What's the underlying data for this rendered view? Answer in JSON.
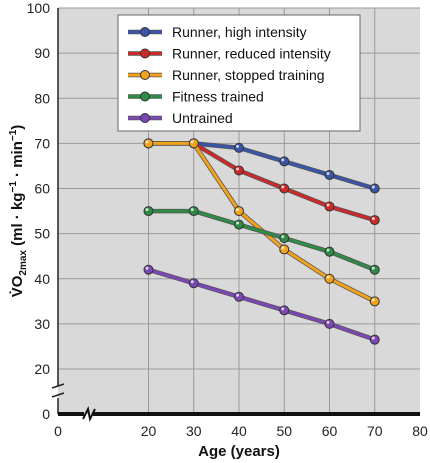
{
  "chart_data": {
    "type": "line",
    "xlabel": "Age (years)",
    "ylabel": "V̇O2max (ml · kg⁻¹ · min⁻¹)",
    "ylabel_parts": {
      "main": "V̇O",
      "sub": "2max",
      "units": " (ml · kg",
      "exp1": "−1",
      "mid": " · min",
      "exp2": "−1",
      "close": ")"
    },
    "xlim": [
      0,
      80
    ],
    "ylim": [
      0,
      100
    ],
    "x_ticks": [
      0,
      20,
      30,
      40,
      50,
      60,
      70,
      80
    ],
    "y_ticks": [
      0,
      20,
      30,
      40,
      50,
      60,
      70,
      80,
      90,
      100
    ],
    "y_axis_break": [
      0,
      20
    ],
    "grid": true,
    "legend_position": "top-center",
    "x": [
      20,
      30,
      40,
      50,
      60,
      70
    ],
    "series": [
      {
        "name": "Runner, high intensity",
        "color": "#3a55a8",
        "x": [
          20,
          30,
          40,
          50,
          60,
          70
        ],
        "values": [
          70,
          70,
          69,
          66,
          63,
          60
        ]
      },
      {
        "name": "Runner, reduced intensity",
        "color": "#cc2a2a",
        "x": [
          20,
          30,
          40,
          50,
          60,
          70
        ],
        "values": [
          70,
          70,
          64,
          60,
          56,
          53
        ]
      },
      {
        "name": "Runner, stopped training",
        "color": "#f2a21b",
        "x": [
          20,
          30,
          40,
          50,
          60,
          70
        ],
        "values": [
          70,
          70,
          55,
          46.5,
          40,
          35
        ]
      },
      {
        "name": "Fitness trained",
        "color": "#2e8a45",
        "x": [
          20,
          30,
          40,
          50,
          60,
          70
        ],
        "values": [
          55,
          55,
          52,
          49,
          46,
          42
        ]
      },
      {
        "name": "Untrained",
        "color": "#7b47b5",
        "x": [
          20,
          30,
          40,
          50,
          60,
          70
        ],
        "values": [
          42,
          39,
          36,
          33,
          30,
          26.5
        ]
      }
    ]
  }
}
